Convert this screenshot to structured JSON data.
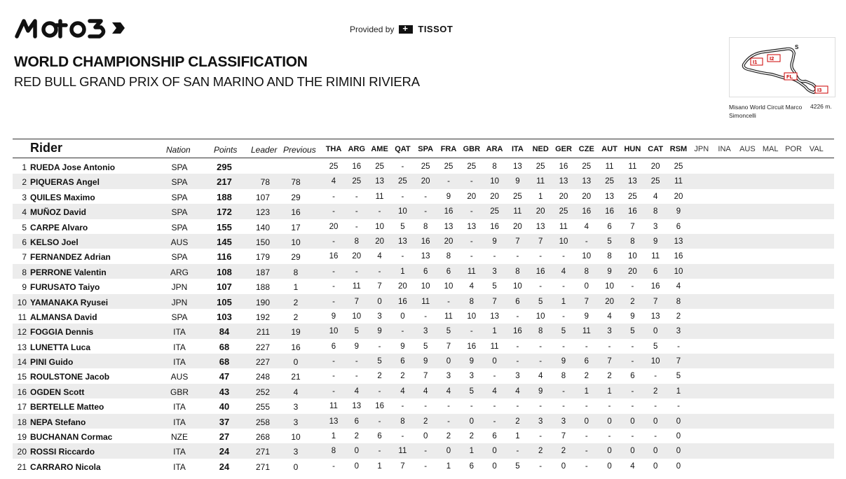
{
  "header": {
    "logo_text": "Moto3",
    "provided_by": "Provided by",
    "sponsor": "TISSOT",
    "title": "WORLD CHAMPIONSHIP CLASSIFICATION",
    "subtitle": "RED BULL GRAND PRIX OF SAN MARINO AND THE RIMINI RIVIERA"
  },
  "track": {
    "name": "Misano World Circuit Marco Simoncelli",
    "length": "4226 m.",
    "labels": [
      "S",
      "I1",
      "I2",
      "FL",
      "I3"
    ]
  },
  "columns": {
    "rider": "Rider",
    "nation": "Nation",
    "points": "Points",
    "leader": "Leader",
    "previous": "Previous",
    "races": [
      "THA",
      "ARG",
      "AME",
      "QAT",
      "SPA",
      "FRA",
      "GBR",
      "ARA",
      "ITA",
      "NED",
      "GER",
      "CZE",
      "AUT",
      "HUN",
      "CAT",
      "RSM",
      "JPN",
      "INA",
      "AUS",
      "MAL",
      "POR",
      "VAL"
    ],
    "completed_races": 16
  },
  "rows": [
    {
      "pos": "1",
      "name": "RUEDA Jose Antonio",
      "nation": "SPA",
      "points": "295",
      "leader": "",
      "previous": "",
      "results": [
        "25",
        "16",
        "25",
        "-",
        "25",
        "25",
        "25",
        "8",
        "13",
        "25",
        "16",
        "25",
        "11",
        "11",
        "20",
        "25"
      ]
    },
    {
      "pos": "2",
      "name": "PIQUERAS Angel",
      "nation": "SPA",
      "points": "217",
      "leader": "78",
      "previous": "78",
      "results": [
        "4",
        "25",
        "13",
        "25",
        "20",
        "-",
        "-",
        "10",
        "9",
        "11",
        "13",
        "13",
        "25",
        "13",
        "25",
        "11"
      ]
    },
    {
      "pos": "3",
      "name": "QUILES Maximo",
      "nation": "SPA",
      "points": "188",
      "leader": "107",
      "previous": "29",
      "results": [
        "-",
        "-",
        "11",
        "-",
        "-",
        "9",
        "20",
        "20",
        "25",
        "1",
        "20",
        "20",
        "13",
        "25",
        "4",
        "20"
      ]
    },
    {
      "pos": "4",
      "name": "MUÑOZ David",
      "nation": "SPA",
      "points": "172",
      "leader": "123",
      "previous": "16",
      "results": [
        "-",
        "-",
        "-",
        "10",
        "-",
        "16",
        "-",
        "25",
        "11",
        "20",
        "25",
        "16",
        "16",
        "16",
        "8",
        "9"
      ]
    },
    {
      "pos": "5",
      "name": "CARPE Alvaro",
      "nation": "SPA",
      "points": "155",
      "leader": "140",
      "previous": "17",
      "results": [
        "20",
        "-",
        "10",
        "5",
        "8",
        "13",
        "13",
        "16",
        "20",
        "13",
        "11",
        "4",
        "6",
        "7",
        "3",
        "6"
      ]
    },
    {
      "pos": "6",
      "name": "KELSO Joel",
      "nation": "AUS",
      "points": "145",
      "leader": "150",
      "previous": "10",
      "results": [
        "-",
        "8",
        "20",
        "13",
        "16",
        "20",
        "-",
        "9",
        "7",
        "7",
        "10",
        "-",
        "5",
        "8",
        "9",
        "13"
      ]
    },
    {
      "pos": "7",
      "name": "FERNANDEZ Adrian",
      "nation": "SPA",
      "points": "116",
      "leader": "179",
      "previous": "29",
      "results": [
        "16",
        "20",
        "4",
        "-",
        "13",
        "8",
        "-",
        "-",
        "-",
        "-",
        "-",
        "10",
        "8",
        "10",
        "11",
        "16"
      ]
    },
    {
      "pos": "8",
      "name": "PERRONE Valentin",
      "nation": "ARG",
      "points": "108",
      "leader": "187",
      "previous": "8",
      "results": [
        "-",
        "-",
        "-",
        "1",
        "6",
        "6",
        "11",
        "3",
        "8",
        "16",
        "4",
        "8",
        "9",
        "20",
        "6",
        "10"
      ]
    },
    {
      "pos": "9",
      "name": "FURUSATO Taiyo",
      "nation": "JPN",
      "points": "107",
      "leader": "188",
      "previous": "1",
      "results": [
        "-",
        "11",
        "7",
        "20",
        "10",
        "10",
        "4",
        "5",
        "10",
        "-",
        "-",
        "0",
        "10",
        "-",
        "16",
        "4"
      ]
    },
    {
      "pos": "10",
      "name": "YAMANAKA Ryusei",
      "nation": "JPN",
      "points": "105",
      "leader": "190",
      "previous": "2",
      "results": [
        "-",
        "7",
        "0",
        "16",
        "11",
        "-",
        "8",
        "7",
        "6",
        "5",
        "1",
        "7",
        "20",
        "2",
        "7",
        "8"
      ]
    },
    {
      "pos": "11",
      "name": "ALMANSA David",
      "nation": "SPA",
      "points": "103",
      "leader": "192",
      "previous": "2",
      "results": [
        "9",
        "10",
        "3",
        "0",
        "-",
        "11",
        "10",
        "13",
        "-",
        "10",
        "-",
        "9",
        "4",
        "9",
        "13",
        "2"
      ]
    },
    {
      "pos": "12",
      "name": "FOGGIA Dennis",
      "nation": "ITA",
      "points": "84",
      "leader": "211",
      "previous": "19",
      "results": [
        "10",
        "5",
        "9",
        "-",
        "3",
        "5",
        "-",
        "1",
        "16",
        "8",
        "5",
        "11",
        "3",
        "5",
        "0",
        "3"
      ]
    },
    {
      "pos": "13",
      "name": "LUNETTA Luca",
      "nation": "ITA",
      "points": "68",
      "leader": "227",
      "previous": "16",
      "results": [
        "6",
        "9",
        "-",
        "9",
        "5",
        "7",
        "16",
        "11",
        "-",
        "-",
        "-",
        "-",
        "-",
        "-",
        "5",
        "-"
      ]
    },
    {
      "pos": "14",
      "name": "PINI Guido",
      "nation": "ITA",
      "points": "68",
      "leader": "227",
      "previous": "0",
      "results": [
        "-",
        "-",
        "5",
        "6",
        "9",
        "0",
        "9",
        "0",
        "-",
        "-",
        "9",
        "6",
        "7",
        "-",
        "10",
        "7"
      ]
    },
    {
      "pos": "15",
      "name": "ROULSTONE Jacob",
      "nation": "AUS",
      "points": "47",
      "leader": "248",
      "previous": "21",
      "results": [
        "-",
        "-",
        "2",
        "2",
        "7",
        "3",
        "3",
        "-",
        "3",
        "4",
        "8",
        "2",
        "2",
        "6",
        "-",
        "5"
      ]
    },
    {
      "pos": "16",
      "name": "OGDEN Scott",
      "nation": "GBR",
      "points": "43",
      "leader": "252",
      "previous": "4",
      "results": [
        "-",
        "4",
        "-",
        "4",
        "4",
        "4",
        "5",
        "4",
        "4",
        "9",
        "-",
        "1",
        "1",
        "-",
        "2",
        "1"
      ]
    },
    {
      "pos": "17",
      "name": "BERTELLE Matteo",
      "nation": "ITA",
      "points": "40",
      "leader": "255",
      "previous": "3",
      "results": [
        "11",
        "13",
        "16",
        "-",
        "-",
        "-",
        "-",
        "-",
        "-",
        "-",
        "-",
        "-",
        "-",
        "-",
        "-",
        "-"
      ]
    },
    {
      "pos": "18",
      "name": "NEPA Stefano",
      "nation": "ITA",
      "points": "37",
      "leader": "258",
      "previous": "3",
      "results": [
        "13",
        "6",
        "-",
        "8",
        "2",
        "-",
        "0",
        "-",
        "2",
        "3",
        "3",
        "0",
        "0",
        "0",
        "0",
        "0"
      ]
    },
    {
      "pos": "19",
      "name": "BUCHANAN Cormac",
      "nation": "NZE",
      "points": "27",
      "leader": "268",
      "previous": "10",
      "results": [
        "1",
        "2",
        "6",
        "-",
        "0",
        "2",
        "2",
        "6",
        "1",
        "-",
        "7",
        "-",
        "-",
        "-",
        "-",
        "0"
      ]
    },
    {
      "pos": "20",
      "name": "ROSSI Riccardo",
      "nation": "ITA",
      "points": "24",
      "leader": "271",
      "previous": "3",
      "results": [
        "8",
        "0",
        "-",
        "11",
        "-",
        "0",
        "1",
        "0",
        "-",
        "2",
        "2",
        "-",
        "0",
        "0",
        "0",
        "0"
      ]
    },
    {
      "pos": "21",
      "name": "CARRARO Nicola",
      "nation": "ITA",
      "points": "24",
      "leader": "271",
      "previous": "0",
      "results": [
        "-",
        "0",
        "1",
        "7",
        "-",
        "1",
        "6",
        "0",
        "5",
        "-",
        "0",
        "-",
        "0",
        "4",
        "0",
        "0"
      ]
    }
  ]
}
